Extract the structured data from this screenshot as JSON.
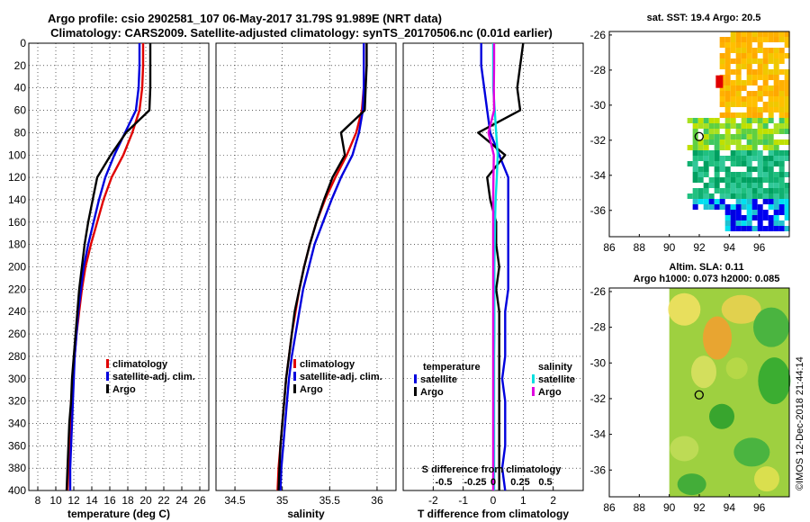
{
  "chart_data": {
    "title_line1": "Argo profile: csio 2902581_107 06-May-2017 31.79S 91.989E (NRT data)",
    "title_line2": "Climatology: CARS2009. Satellite-adjusted climatology: synTS_20170506.nc (0.01d earlier)",
    "credit": "©IMOS 12-Dec-2018 21:44:14",
    "depth_ticks": [
      0,
      20,
      40,
      60,
      80,
      100,
      120,
      140,
      160,
      180,
      200,
      220,
      240,
      260,
      280,
      300,
      320,
      340,
      360,
      380,
      400
    ],
    "ylim": [
      0,
      400
    ],
    "panels": [
      {
        "id": "temperature",
        "type": "line",
        "xlabel": "temperature (deg C)",
        "xlim": [
          7,
          27
        ],
        "xticks": [
          8,
          10,
          12,
          14,
          16,
          18,
          20,
          22,
          24,
          26
        ],
        "legend": [
          "climatology",
          "satellite-adj. clim.",
          "Argo"
        ],
        "series": [
          {
            "name": "climatology",
            "color": "#e00000",
            "x": [
              19.7,
              19.7,
              19.6,
              19.3,
              18.5,
              17.5,
              16.2,
              15.3,
              14.6,
              13.9,
              13.3,
              12.9,
              12.6,
              12.3,
              12.1,
              11.9,
              11.7,
              11.6,
              11.5,
              11.4,
              11.3
            ],
            "y": [
              0,
              20,
              40,
              60,
              80,
              100,
              120,
              140,
              160,
              180,
              200,
              220,
              240,
              260,
              280,
              300,
              320,
              340,
              360,
              380,
              400
            ]
          },
          {
            "name": "satellite-adj. clim.",
            "color": "#0000dd",
            "x": [
              19.3,
              19.3,
              19.2,
              18.9,
              17.7,
              16.5,
              15.5,
              14.8,
              14.2,
              13.6,
              13.1,
              12.8,
              12.5,
              12.3,
              12.1,
              12.0,
              11.9,
              11.8,
              11.7,
              11.6,
              11.6
            ],
            "y": [
              0,
              20,
              40,
              60,
              80,
              100,
              120,
              140,
              160,
              180,
              200,
              220,
              240,
              260,
              280,
              300,
              320,
              340,
              360,
              380,
              400
            ]
          },
          {
            "name": "Argo",
            "color": "#000000",
            "x": [
              20.5,
              20.5,
              20.5,
              20.4,
              17.8,
              16.1,
              14.6,
              14.1,
              13.6,
              13.2,
              12.9,
              12.6,
              12.4,
              12.2,
              12.0,
              11.8,
              11.7,
              11.5,
              11.4,
              11.3,
              11.2
            ],
            "y": [
              0,
              20,
              40,
              60,
              80,
              100,
              120,
              140,
              160,
              180,
              200,
              220,
              240,
              260,
              280,
              300,
              320,
              340,
              360,
              380,
              400
            ]
          }
        ]
      },
      {
        "id": "salinity",
        "type": "line",
        "xlabel": "salinity",
        "xlim": [
          34.3,
          36.2
        ],
        "xticks": [
          34.5,
          35,
          35.5,
          36
        ],
        "legend": [
          "climatology",
          "satellite-adj. clim.",
          "Argo"
        ],
        "series": [
          {
            "name": "climatology",
            "color": "#e00000",
            "x": [
              35.86,
              35.86,
              35.86,
              35.84,
              35.78,
              35.68,
              35.56,
              35.45,
              35.36,
              35.29,
              35.23,
              35.18,
              35.14,
              35.1,
              35.07,
              35.04,
              35.02,
              35.0,
              34.98,
              34.96,
              34.95
            ],
            "y": [
              0,
              20,
              40,
              60,
              80,
              100,
              120,
              140,
              160,
              180,
              200,
              220,
              240,
              260,
              280,
              300,
              320,
              340,
              360,
              380,
              400
            ]
          },
          {
            "name": "satellite-adj. clim.",
            "color": "#0000dd",
            "x": [
              35.86,
              35.86,
              35.86,
              35.85,
              35.81,
              35.74,
              35.62,
              35.52,
              35.43,
              35.34,
              35.28,
              35.22,
              35.18,
              35.14,
              35.1,
              35.07,
              35.05,
              35.03,
              35.01,
              34.99,
              34.98
            ],
            "y": [
              0,
              20,
              40,
              60,
              80,
              100,
              120,
              140,
              160,
              180,
              200,
              220,
              240,
              260,
              280,
              300,
              320,
              340,
              360,
              380,
              400
            ]
          },
          {
            "name": "Argo",
            "color": "#000000",
            "x": [
              35.89,
              35.89,
              35.88,
              35.87,
              35.62,
              35.66,
              35.53,
              35.44,
              35.36,
              35.29,
              35.23,
              35.18,
              35.13,
              35.1,
              35.07,
              35.04,
              35.02,
              35.0,
              34.98,
              34.97,
              34.96
            ],
            "y": [
              0,
              20,
              40,
              60,
              80,
              100,
              120,
              140,
              160,
              180,
              200,
              220,
              240,
              260,
              280,
              300,
              320,
              340,
              360,
              380,
              400
            ]
          }
        ]
      },
      {
        "id": "difference",
        "type": "line",
        "xlabel": "T difference from climatology",
        "top_axis_label": "S difference from climatology",
        "xlim": [
          -3,
          3
        ],
        "xticks": [
          -2,
          -1,
          0,
          1,
          2
        ],
        "top_ticks": [
          "-0.5",
          "-0.25",
          "0",
          "0.25",
          "0.5"
        ],
        "legend_temperature_title": "temperature",
        "legend_salinity_title": "salinity",
        "legend_temperature": [
          "satellite",
          "Argo"
        ],
        "legend_salinity": [
          "satellite",
          "Argo"
        ],
        "series": [
          {
            "name": "T satellite",
            "color": "#0000dd",
            "x": [
              -0.4,
              -0.4,
              -0.3,
              -0.2,
              -0.1,
              0.2,
              0.5,
              0.5,
              0.5,
              0.5,
              0.5,
              0.5,
              0.4,
              0.4,
              0.4,
              0.3,
              0.4,
              0.4,
              0.4,
              0.3,
              0.4
            ],
            "y": [
              0,
              20,
              40,
              60,
              80,
              100,
              120,
              140,
              160,
              180,
              200,
              220,
              240,
              260,
              280,
              300,
              320,
              340,
              360,
              380,
              400
            ]
          },
          {
            "name": "T Argo",
            "color": "#000000",
            "x": [
              1.0,
              0.9,
              0.8,
              0.9,
              -0.5,
              0.4,
              -0.2,
              -0.1,
              0.1,
              0.1,
              0.2,
              0.1,
              0.2,
              0.2,
              0.2,
              0.2,
              0.2,
              0.2,
              0.2,
              0.2,
              0.2
            ],
            "y": [
              0,
              20,
              40,
              60,
              80,
              100,
              120,
              140,
              160,
              180,
              200,
              220,
              240,
              260,
              280,
              300,
              320,
              340,
              360,
              380,
              400
            ]
          },
          {
            "name": "S satellite",
            "color": "#00e0e0",
            "x": [
              0.0,
              0.0,
              0.0,
              0.05,
              0.1,
              0.15,
              0.12,
              0.08,
              0.06,
              0.05,
              0.04,
              0.04,
              0.04,
              0.04,
              0.03,
              0.03,
              0.03,
              0.03,
              0.03,
              0.03,
              0.03
            ],
            "y": [
              0,
              20,
              40,
              60,
              80,
              100,
              120,
              140,
              160,
              180,
              200,
              220,
              240,
              260,
              280,
              300,
              320,
              340,
              360,
              380,
              400
            ]
          },
          {
            "name": "S Argo",
            "color": "#e000e0",
            "x": [
              0.03,
              0.03,
              0.02,
              0.03,
              -0.16,
              0.02,
              0.01,
              0.0,
              0.0,
              0.0,
              0.0,
              0.0,
              0.0,
              0.0,
              0.0,
              0.0,
              0.0,
              0.0,
              0.0,
              0.0,
              0.0
            ],
            "y": [
              0,
              20,
              40,
              60,
              80,
              100,
              120,
              140,
              160,
              180,
              200,
              220,
              240,
              260,
              280,
              300,
              320,
              340,
              360,
              380,
              400
            ]
          }
        ]
      }
    ],
    "maps": [
      {
        "id": "sst-map",
        "title": "sat. SST: 19.4  Argo: 20.5",
        "xlim": [
          86,
          98
        ],
        "ylim": [
          -37.5,
          -25.8
        ],
        "xticks": [
          86,
          88,
          90,
          92,
          94,
          96
        ],
        "yticks": [
          -26,
          -28,
          -30,
          -32,
          -34,
          -36
        ],
        "profile_lon": 91.989,
        "profile_lat": -31.79
      },
      {
        "id": "sla-map",
        "title": "Altim. SLA: 0.11",
        "subtitle": "Argo h1000: 0.073 h2000: 0.085",
        "xlim": [
          86,
          98
        ],
        "ylim": [
          -37.5,
          -25.8
        ],
        "xticks": [
          86,
          88,
          90,
          92,
          94,
          96
        ],
        "yticks": [
          -26,
          -28,
          -30,
          -32,
          -34,
          -36
        ],
        "profile_lon": 91.989,
        "profile_lat": -31.79
      }
    ]
  }
}
